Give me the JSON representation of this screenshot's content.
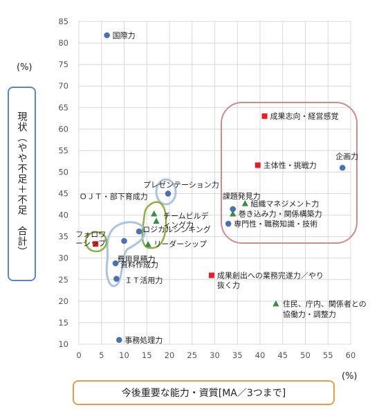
{
  "chart_data": {
    "type": "scatter",
    "xlabel": "今後重要な能力・資質[MA／3つまで]",
    "ylabel": "現状（やや不足＋不足　合計）",
    "x_unit": "(%)",
    "y_unit": "(%)",
    "xlim": [
      0,
      60
    ],
    "ylim": [
      10,
      85
    ],
    "x_ticks": [
      "0",
      "5",
      "10",
      "15",
      "20",
      "25",
      "30",
      "35",
      "40",
      "45",
      "50",
      "55",
      "60"
    ],
    "y_ticks": [
      "10",
      "15",
      "20",
      "25",
      "30",
      "35",
      "40",
      "45",
      "50",
      "55",
      "60",
      "65",
      "70",
      "75",
      "80",
      "85"
    ],
    "grid": true,
    "colors": {
      "circle": "#4a72b0",
      "square": "#e41e26",
      "triangle": "#3a8a4a"
    },
    "points": [
      {
        "label": "国際力",
        "x": 6.2,
        "y": 81.8,
        "marker": "circle"
      },
      {
        "label": "成果志向・経営感覚",
        "x": 41.0,
        "y": 63.0,
        "marker": "square"
      },
      {
        "label": "主体性・挑戦力",
        "x": 39.5,
        "y": 51.6,
        "marker": "square"
      },
      {
        "label": "企画力",
        "x": 58.2,
        "y": 51.0,
        "marker": "circle"
      },
      {
        "label": "プレゼンテーション力",
        "x": 19.7,
        "y": 45.0,
        "marker": "circle"
      },
      {
        "label": "課題発見力",
        "x": 34.0,
        "y": 41.4,
        "marker": "circle"
      },
      {
        "label": "組織マネジメント力",
        "x": 36.7,
        "y": 42.7,
        "marker": "triangle"
      },
      {
        "label": "巻き込み力・関係構築力",
        "x": 34.0,
        "y": 40.3,
        "marker": "triangle"
      },
      {
        "label": "専門性・職務知識・技術",
        "x": 33.0,
        "y": 38.0,
        "marker": "circle"
      },
      {
        "label": "ＯＪＴ・部下育成力",
        "x": 16.6,
        "y": 40.3,
        "marker": "triangle"
      },
      {
        "label": "チームビルディング力",
        "x": 17.1,
        "y": 38.6,
        "marker": "triangle"
      },
      {
        "label": "ロジカルシンキング",
        "x": 13.3,
        "y": 36.2,
        "marker": "circle"
      },
      {
        "label": "リーダーシップ",
        "x": 15.3,
        "y": 33.2,
        "marker": "triangle"
      },
      {
        "label": "フォロワーシップ",
        "x": 3.7,
        "y": 33.3,
        "marker": "square"
      },
      {
        "label": "費用見積力",
        "x": 10.0,
        "y": 34.0,
        "marker": "circle"
      },
      {
        "label": "資料作成力",
        "x": 8.1,
        "y": 28.8,
        "marker": "circle"
      },
      {
        "label": "ＩＴ活用力",
        "x": 8.3,
        "y": 25.2,
        "marker": "circle"
      },
      {
        "label": "成果創出への業務完遂力／やり抜く力",
        "x": 29.3,
        "y": 26.0,
        "marker": "square"
      },
      {
        "label": "住民、庁内、関係者との協働力・調整力",
        "x": 43.5,
        "y": 19.4,
        "marker": "triangle"
      },
      {
        "label": "事務処理力",
        "x": 8.9,
        "y": 11.0,
        "marker": "circle"
      }
    ]
  }
}
